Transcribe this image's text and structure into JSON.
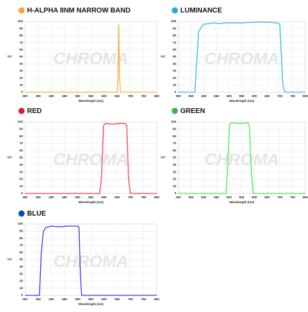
{
  "chart_data": [
    {
      "type": "line",
      "title": "H-ALPHA 8NM NARROW BAND",
      "watermark": "CHROMA",
      "xlabel": "Wavelength (nm)",
      "ylabel": "%T",
      "dot_color": "#f7a530",
      "grid": true,
      "xlim": [
        300,
        800
      ],
      "ylim": [
        0,
        100
      ],
      "xticks": [
        300,
        350,
        400,
        450,
        500,
        550,
        600,
        650,
        700,
        750,
        800
      ],
      "yticks": [
        0,
        10,
        20,
        30,
        40,
        50,
        60,
        70,
        80,
        90,
        100
      ],
      "series": [
        {
          "name": "H-alpha",
          "color": "#f9b040",
          "x": [
            300,
            640,
            650,
            653,
            656,
            659,
            662,
            672,
            800
          ],
          "values": [
            0,
            0,
            0,
            20,
            96,
            20,
            0,
            0,
            0
          ]
        }
      ]
    },
    {
      "type": "line",
      "title": "LUMINANCE",
      "watermark": "CHROMA",
      "xlabel": "Wavelength (nm)",
      "ylabel": "%T",
      "dot_color": "#29abe2",
      "grid": true,
      "xlim": [
        300,
        800
      ],
      "ylim": [
        0,
        100
      ],
      "xticks": [
        300,
        350,
        400,
        450,
        500,
        550,
        600,
        650,
        700,
        750,
        800
      ],
      "yticks": [
        0,
        10,
        20,
        30,
        40,
        50,
        60,
        70,
        80,
        90,
        100
      ],
      "series": [
        {
          "name": "Luminance",
          "color": "#40b8e0",
          "x": [
            300,
            365,
            372,
            380,
            390,
            400,
            420,
            440,
            460,
            480,
            500,
            550,
            600,
            650,
            690,
            700,
            705,
            712,
            720,
            800
          ],
          "values": [
            0,
            0,
            40,
            85,
            92,
            96,
            97,
            98,
            97,
            98,
            98,
            98,
            99,
            99,
            98,
            96,
            60,
            10,
            0,
            0
          ]
        }
      ]
    },
    {
      "type": "line",
      "title": "RED",
      "watermark": "CHROMA",
      "xlabel": "Wavelength (nm)",
      "ylabel": "%T",
      "dot_color": "#d2232a",
      "grid": true,
      "xlim": [
        300,
        800
      ],
      "ylim": [
        0,
        100
      ],
      "xticks": [
        300,
        350,
        400,
        450,
        500,
        550,
        600,
        650,
        700,
        750,
        800
      ],
      "yticks": [
        0,
        10,
        20,
        30,
        40,
        50,
        60,
        70,
        80,
        90,
        100
      ],
      "series": [
        {
          "name": "Red",
          "color": "#e8474c",
          "x": [
            300,
            583,
            590,
            598,
            605,
            630,
            655,
            680,
            686,
            693,
            700,
            800
          ],
          "values": [
            0,
            0,
            20,
            95,
            98,
            97,
            98,
            98,
            95,
            20,
            0,
            0
          ]
        }
      ]
    },
    {
      "type": "line",
      "title": "GREEN",
      "watermark": "CHROMA",
      "xlabel": "Wavelength (nm)",
      "ylabel": "%T",
      "dot_color": "#3cb54a",
      "grid": true,
      "xlim": [
        300,
        800
      ],
      "ylim": [
        0,
        100
      ],
      "xticks": [
        300,
        350,
        400,
        450,
        500,
        550,
        600,
        650,
        700,
        750,
        800
      ],
      "yticks": [
        0,
        10,
        20,
        30,
        40,
        50,
        60,
        70,
        80,
        90,
        100
      ],
      "series": [
        {
          "name": "Green",
          "color": "#4ee84e",
          "x": [
            300,
            488,
            495,
            502,
            510,
            540,
            575,
            580,
            588,
            595,
            800
          ],
          "values": [
            0,
            0,
            40,
            97,
            99,
            98,
            99,
            95,
            30,
            0,
            0
          ]
        }
      ]
    },
    {
      "type": "line",
      "title": "BLUE",
      "watermark": "CHROMA",
      "xlabel": "Wavelength (nm)",
      "ylabel": "%T",
      "dot_color": "#0054a6",
      "grid": true,
      "xlim": [
        300,
        800
      ],
      "ylim": [
        0,
        100
      ],
      "xticks": [
        300,
        350,
        400,
        450,
        500,
        550,
        600,
        650,
        700,
        750,
        800
      ],
      "yticks": [
        0,
        10,
        20,
        30,
        40,
        50,
        60,
        70,
        80,
        90,
        100
      ],
      "series": [
        {
          "name": "Blue",
          "color": "#3a3ae8",
          "x": [
            300,
            355,
            362,
            370,
            380,
            400,
            430,
            460,
            500,
            505,
            510,
            515,
            800
          ],
          "values": [
            0,
            0,
            60,
            90,
            95,
            97,
            96,
            97,
            97,
            95,
            30,
            0,
            0
          ]
        }
      ]
    }
  ]
}
